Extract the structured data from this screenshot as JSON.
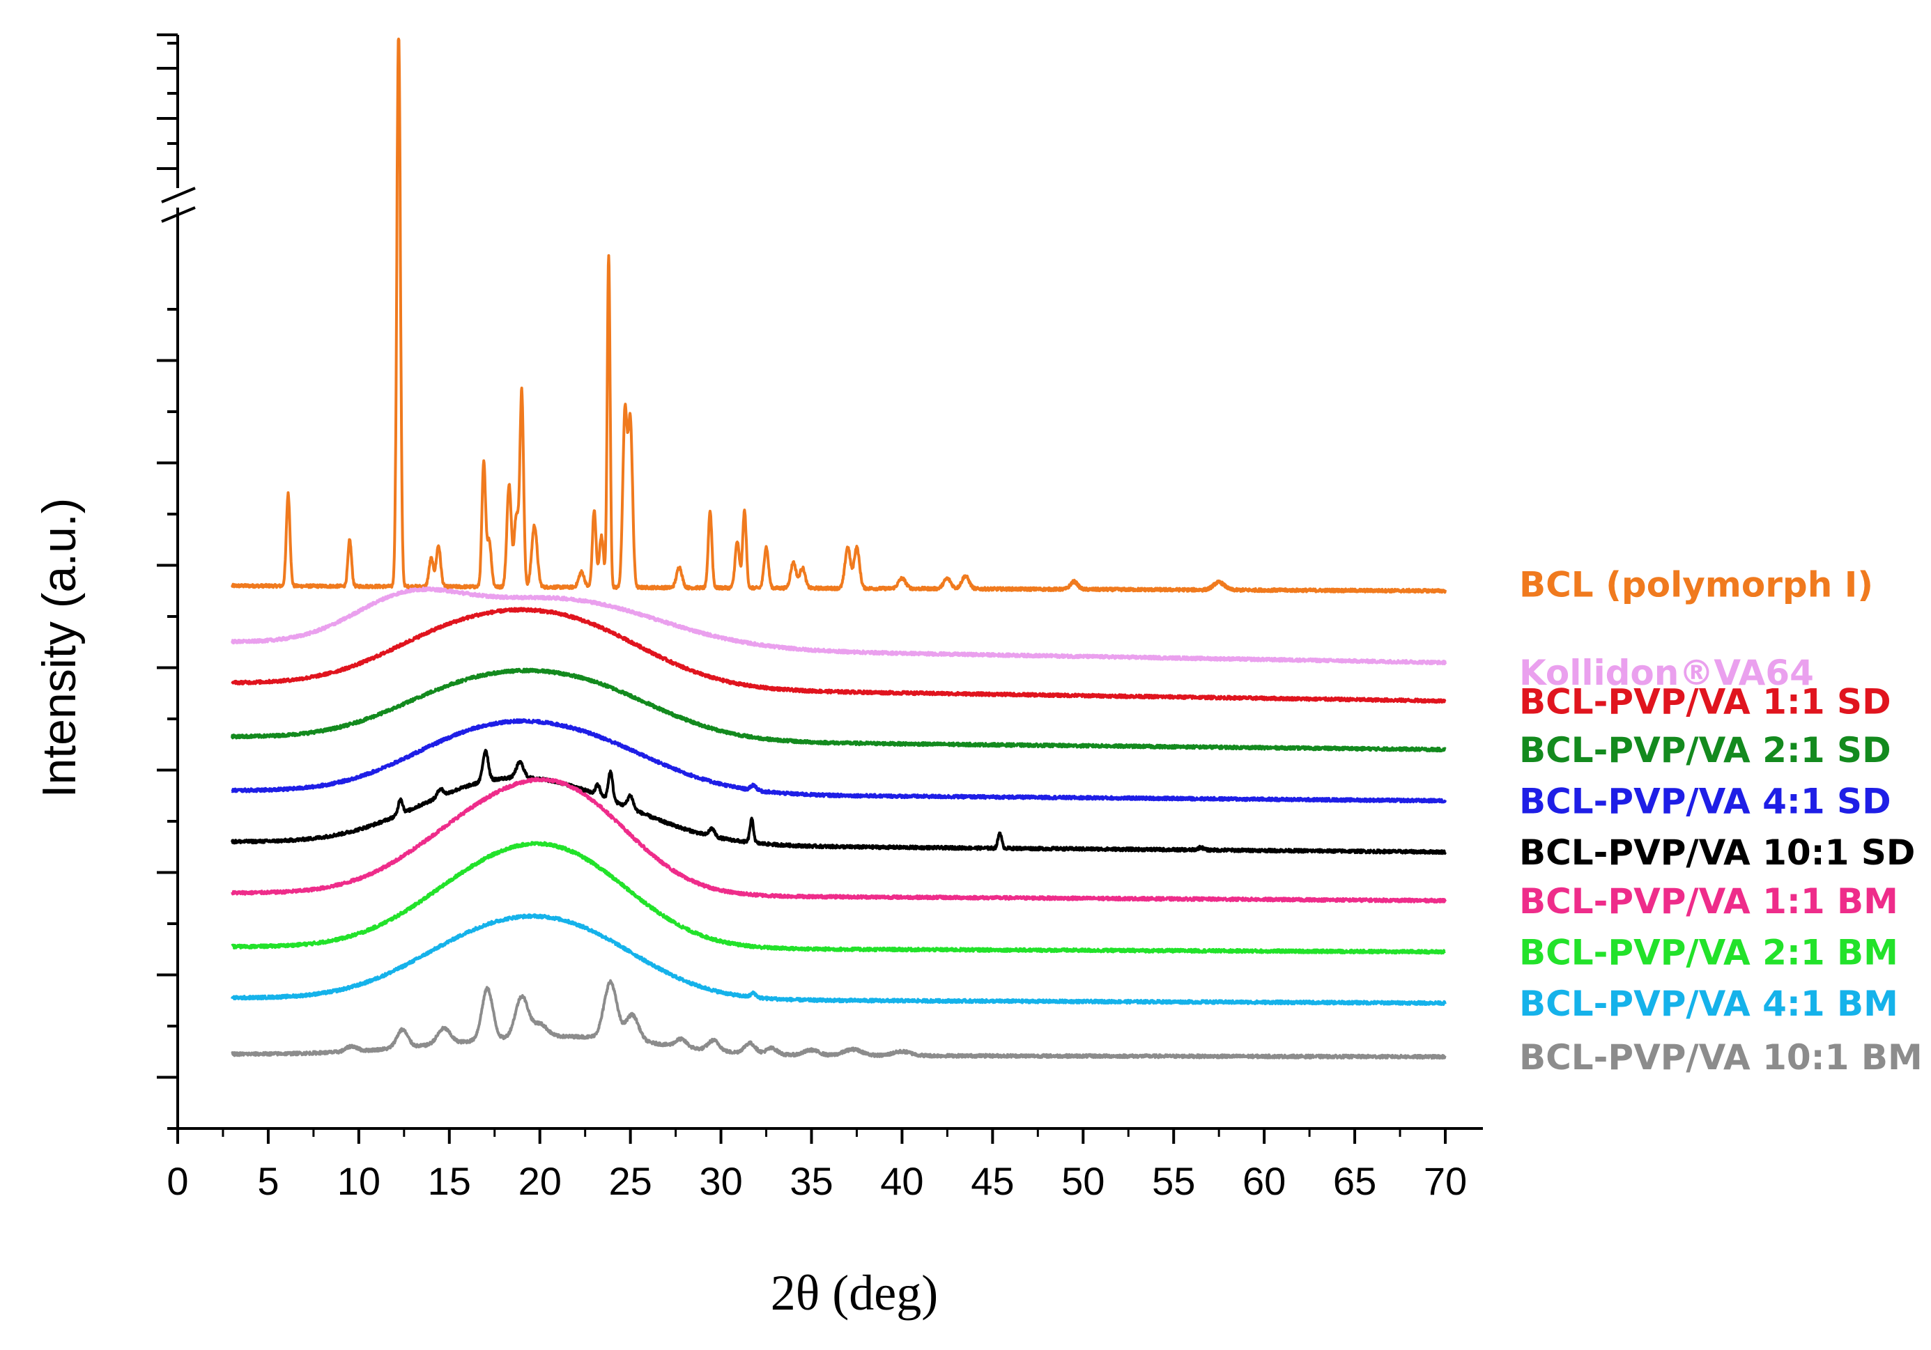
{
  "chart_data": {
    "type": "line",
    "title": "",
    "xlabel": "2θ (deg)",
    "ylabel": "Intensity (a.u.)",
    "xlim": [
      0,
      70
    ],
    "x_ticks": [
      0,
      5,
      10,
      15,
      20,
      25,
      30,
      35,
      40,
      45,
      50,
      55,
      60,
      65,
      70
    ],
    "y_axis_break": true,
    "y_tick_labels": "none",
    "offset_stacked": true,
    "x_range_plotted": [
      3,
      70
    ],
    "series": [
      {
        "name": "BCL (polymorph I)",
        "color": "#F07A1E",
        "baseline": 10.6,
        "tail": 10.5,
        "amorphous": [],
        "peaks": [
          [
            6.1,
            1.8,
            0.1
          ],
          [
            9.5,
            0.9,
            0.1
          ],
          [
            12.2,
            10.5,
            0.1
          ],
          [
            14.0,
            0.55,
            0.12
          ],
          [
            14.4,
            0.8,
            0.12
          ],
          [
            16.9,
            2.4,
            0.1
          ],
          [
            17.2,
            0.9,
            0.12
          ],
          [
            18.3,
            2.0,
            0.12
          ],
          [
            18.7,
            1.4,
            0.12
          ],
          [
            19.0,
            3.8,
            0.1
          ],
          [
            19.7,
            1.2,
            0.15
          ],
          [
            22.3,
            0.3,
            0.15
          ],
          [
            23.0,
            1.5,
            0.1
          ],
          [
            23.4,
            1.0,
            0.12
          ],
          [
            23.8,
            6.5,
            0.08
          ],
          [
            24.7,
            3.4,
            0.12
          ],
          [
            25.0,
            3.2,
            0.12
          ],
          [
            27.7,
            0.4,
            0.15
          ],
          [
            29.4,
            1.5,
            0.1
          ],
          [
            30.9,
            0.9,
            0.12
          ],
          [
            31.3,
            1.5,
            0.1
          ],
          [
            32.5,
            0.8,
            0.12
          ],
          [
            34.0,
            0.5,
            0.15
          ],
          [
            34.5,
            0.4,
            0.15
          ],
          [
            37.0,
            0.8,
            0.15
          ],
          [
            37.5,
            0.8,
            0.15
          ],
          [
            40.0,
            0.2,
            0.2
          ],
          [
            42.5,
            0.2,
            0.2
          ],
          [
            43.5,
            0.25,
            0.2
          ],
          [
            49.5,
            0.15,
            0.2
          ],
          [
            57.5,
            0.15,
            0.3
          ]
        ]
      },
      {
        "name": "Kollidon®VA64",
        "color": "#EAA0EE",
        "baseline": 9.5,
        "tail": 9.1,
        "amorphous": [
          [
            12.6,
            0.75,
            3.0
          ],
          [
            21.0,
            0.95,
            5.5
          ]
        ],
        "peaks": []
      },
      {
        "name": "BCL-PVP/VA 1:1 SD",
        "color": "#E0141E",
        "baseline": 8.7,
        "tail": 8.35,
        "amorphous": [
          [
            15.0,
            0.8,
            4.0
          ],
          [
            21.5,
            1.2,
            4.5
          ]
        ],
        "peaks": []
      },
      {
        "name": "BCL-PVP/VA 2:1 SD",
        "color": "#138A1E",
        "baseline": 7.65,
        "tail": 7.4,
        "amorphous": [
          [
            15.5,
            0.75,
            4.0
          ],
          [
            22.0,
            1.05,
            4.5
          ]
        ],
        "peaks": []
      },
      {
        "name": "BCL-PVP/VA 4:1 SD",
        "color": "#1E1EE6",
        "baseline": 6.6,
        "tail": 6.4,
        "amorphous": [
          [
            16.0,
            0.8,
            4.0
          ],
          [
            22.0,
            1.0,
            4.5
          ]
        ],
        "peaks": [
          [
            31.8,
            0.1,
            0.15
          ]
        ]
      },
      {
        "name": "BCL-PVP/VA 10:1 SD",
        "color": "#000000",
        "baseline": 5.6,
        "tail": 5.4,
        "amorphous": [
          [
            16.0,
            0.7,
            4.0
          ],
          [
            21.5,
            0.9,
            4.5
          ]
        ],
        "peaks": [
          [
            12.3,
            0.3,
            0.12
          ],
          [
            14.5,
            0.15,
            0.15
          ],
          [
            17.0,
            0.6,
            0.15
          ],
          [
            18.9,
            0.3,
            0.2
          ],
          [
            23.2,
            0.2,
            0.12
          ],
          [
            23.9,
            0.55,
            0.12
          ],
          [
            25.0,
            0.25,
            0.15
          ],
          [
            29.5,
            0.15,
            0.15
          ],
          [
            31.7,
            0.45,
            0.1
          ],
          [
            45.4,
            0.3,
            0.1
          ],
          [
            56.5,
            0.05,
            0.15
          ]
        ]
      },
      {
        "name": "BCL-PVP/VA 1:1 BM",
        "color": "#EE2C8A",
        "baseline": 4.6,
        "tail": 4.45,
        "amorphous": [
          [
            17.0,
            1.35,
            4.0
          ],
          [
            22.0,
            1.45,
            3.5
          ]
        ],
        "peaks": []
      },
      {
        "name": "BCL-PVP/VA 2:1 BM",
        "color": "#22E22A",
        "baseline": 3.55,
        "tail": 3.45,
        "amorphous": [
          [
            17.0,
            1.2,
            4.0
          ],
          [
            22.0,
            1.3,
            3.8
          ]
        ],
        "peaks": []
      },
      {
        "name": "BCL-PVP/VA 4:1 BM",
        "color": "#15B2EA",
        "baseline": 2.55,
        "tail": 2.45,
        "amorphous": [
          [
            16.5,
            0.95,
            4.0
          ],
          [
            22.0,
            1.1,
            4.0
          ]
        ],
        "peaks": [
          [
            31.8,
            0.08,
            0.15
          ]
        ]
      },
      {
        "name": "BCL-PVP/VA 10:1 BM",
        "color": "#8C8C8C",
        "baseline": 1.45,
        "tail": 1.4,
        "amorphous": [
          [
            18.0,
            0.25,
            5.0
          ],
          [
            24.0,
            0.2,
            4.0
          ]
        ],
        "peaks": [
          [
            9.6,
            0.1,
            0.3
          ],
          [
            12.4,
            0.35,
            0.3
          ],
          [
            14.7,
            0.3,
            0.35
          ],
          [
            17.1,
            1.0,
            0.3
          ],
          [
            19.0,
            0.8,
            0.35
          ],
          [
            20.0,
            0.25,
            0.4
          ],
          [
            23.9,
            1.1,
            0.35
          ],
          [
            25.1,
            0.5,
            0.35
          ],
          [
            27.8,
            0.15,
            0.3
          ],
          [
            29.6,
            0.2,
            0.3
          ],
          [
            31.6,
            0.2,
            0.3
          ],
          [
            32.8,
            0.12,
            0.3
          ],
          [
            35.0,
            0.1,
            0.4
          ],
          [
            37.3,
            0.12,
            0.5
          ],
          [
            40.0,
            0.08,
            0.5
          ]
        ]
      }
    ]
  }
}
